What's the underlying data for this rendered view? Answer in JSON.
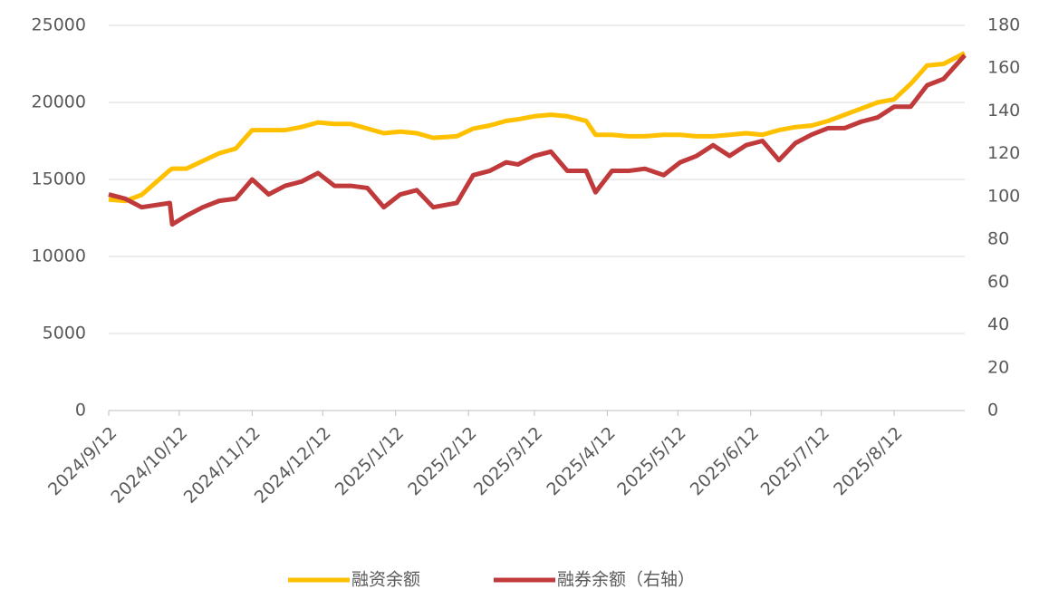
{
  "chart_data": {
    "type": "line",
    "x": [
      "2024/9/12",
      "2024/9/19",
      "2024/9/26",
      "2024/10/8",
      "2024/10/9",
      "2024/10/15",
      "2024/10/22",
      "2024/10/29",
      "2024/11/5",
      "2024/11/12",
      "2024/11/19",
      "2024/11/26",
      "2024/12/3",
      "2024/12/10",
      "2024/12/17",
      "2024/12/24",
      "2024/12/31",
      "2025/1/7",
      "2025/1/14",
      "2025/1/21",
      "2025/1/28",
      "2025/2/7",
      "2025/2/14",
      "2025/2/21",
      "2025/2/28",
      "2025/3/5",
      "2025/3/12",
      "2025/3/19",
      "2025/3/26",
      "2025/4/3",
      "2025/4/7",
      "2025/4/14",
      "2025/4/21",
      "2025/4/28",
      "2025/5/6",
      "2025/5/13",
      "2025/5/20",
      "2025/5/27",
      "2025/6/3",
      "2025/6/10",
      "2025/6/17",
      "2025/6/24",
      "2025/7/1",
      "2025/7/8",
      "2025/7/15",
      "2025/7/22",
      "2025/7/29",
      "2025/8/5",
      "2025/8/12",
      "2025/8/19",
      "2025/8/26",
      "2025/9/2",
      "2025/9/11"
    ],
    "xlim": [
      "2024/9/12",
      "2025/9/11"
    ],
    "xticks": [
      "2024/9/12",
      "2024/10/12",
      "2024/11/12",
      "2024/12/12",
      "2025/1/12",
      "2025/2/12",
      "2025/3/12",
      "2025/4/12",
      "2025/5/12",
      "2025/6/12",
      "2025/7/12",
      "2025/8/12"
    ],
    "ylim": [
      0,
      25000
    ],
    "yticks": [
      0,
      5000,
      10000,
      15000,
      20000,
      25000
    ],
    "y2lim": [
      0,
      180
    ],
    "y2ticks": [
      0,
      20,
      40,
      60,
      80,
      100,
      120,
      140,
      160,
      180
    ],
    "grid": true,
    "series": [
      {
        "name": "融资余额",
        "color": "#ffc000",
        "values": [
          13700,
          13600,
          14000,
          15600,
          15700,
          15700,
          16200,
          16700,
          17000,
          18200,
          18200,
          18200,
          18400,
          18700,
          18600,
          18600,
          18300,
          18000,
          18100,
          18000,
          17700,
          17800,
          18300,
          18500,
          18800,
          18900,
          19100,
          19200,
          19100,
          18800,
          17900,
          17900,
          17800,
          17800,
          17900,
          17900,
          17800,
          17800,
          17900,
          18000,
          17900,
          18200,
          18400,
          18500,
          18800,
          19200,
          19600,
          20000,
          20200,
          21200,
          22400,
          22500,
          23200
        ]
      },
      {
        "name": "融券余额（右轴）",
        "color": "#c0393b",
        "axis": "y2",
        "values": [
          101,
          99,
          95,
          97,
          87,
          91,
          95,
          98,
          99,
          108,
          101,
          105,
          107,
          111,
          105,
          105,
          104,
          95,
          101,
          103,
          95,
          97,
          110,
          112,
          116,
          115,
          119,
          121,
          112,
          112,
          102,
          112,
          112,
          113,
          110,
          116,
          119,
          124,
          119,
          124,
          126,
          117,
          125,
          129,
          132,
          132,
          135,
          137,
          142,
          142,
          152,
          155,
          166
        ]
      }
    ]
  }
}
